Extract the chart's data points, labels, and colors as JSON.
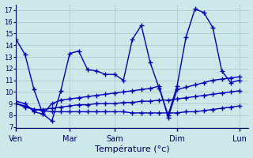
{
  "xlabel": "Température (°c)",
  "background_color": "#cce8e8",
  "grid_color": "#aacccc",
  "line_color": "#0000bb",
  "ylim": [
    7,
    17.5
  ],
  "xlim": [
    0,
    26
  ],
  "yticks": [
    7,
    8,
    9,
    10,
    11,
    12,
    13,
    14,
    15,
    16,
    17
  ],
  "xtick_positions": [
    0,
    6,
    11,
    18,
    25
  ],
  "xtick_labels": [
    "Ven",
    "Mar",
    "Sam",
    "Dim",
    "Lun"
  ],
  "series": [
    [
      14.5,
      13.2,
      10.2,
      8.1,
      7.5,
      10.1,
      13.3,
      13.5,
      11.9,
      11.8,
      11.5,
      11.5,
      11.0,
      14.5,
      15.7,
      12.5,
      10.3,
      8.0,
      10.5,
      14.7,
      17.1,
      16.8,
      15.5,
      11.8,
      10.8,
      11.0
    ],
    [
      9.2,
      9.0,
      8.3,
      8.1,
      9.0,
      9.3,
      9.4,
      9.5,
      9.6,
      9.7,
      9.8,
      9.9,
      10.0,
      10.1,
      10.2,
      10.3,
      10.5,
      7.8,
      10.2,
      10.4,
      10.6,
      10.8,
      11.0,
      11.1,
      11.2,
      11.3
    ],
    [
      9.0,
      8.8,
      8.5,
      8.5,
      8.6,
      8.7,
      8.8,
      8.9,
      8.9,
      9.0,
      9.0,
      9.0,
      9.1,
      9.1,
      9.2,
      9.2,
      9.3,
      9.3,
      9.4,
      9.5,
      9.6,
      9.7,
      9.8,
      9.9,
      10.0,
      10.1
    ],
    [
      9.0,
      8.7,
      8.5,
      8.4,
      8.3,
      8.3,
      8.3,
      8.3,
      8.3,
      8.3,
      8.3,
      8.3,
      8.3,
      8.2,
      8.2,
      8.2,
      8.2,
      8.2,
      8.2,
      8.3,
      8.3,
      8.4,
      8.5,
      8.6,
      8.7,
      8.8
    ]
  ],
  "series_x": [
    [
      0,
      1,
      2,
      3,
      4,
      5,
      6,
      7,
      8,
      9,
      10,
      11,
      12,
      13,
      14,
      15,
      16,
      17,
      18,
      19,
      20,
      21,
      22,
      23,
      24,
      25
    ],
    [
      0,
      1,
      2,
      3,
      4,
      5,
      6,
      7,
      8,
      9,
      10,
      11,
      12,
      13,
      14,
      15,
      16,
      17,
      18,
      19,
      20,
      21,
      22,
      23,
      24,
      25
    ],
    [
      0,
      1,
      2,
      3,
      4,
      5,
      6,
      7,
      8,
      9,
      10,
      11,
      12,
      13,
      14,
      15,
      16,
      17,
      18,
      19,
      20,
      21,
      22,
      23,
      24,
      25
    ],
    [
      0,
      1,
      2,
      3,
      4,
      5,
      6,
      7,
      8,
      9,
      10,
      11,
      12,
      13,
      14,
      15,
      16,
      17,
      18,
      19,
      20,
      21,
      22,
      23,
      24,
      25
    ]
  ]
}
